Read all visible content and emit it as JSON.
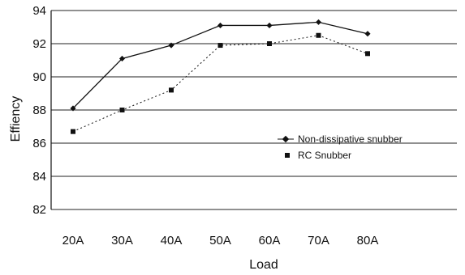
{
  "chart_data": {
    "type": "line",
    "xlabel": "Load",
    "ylabel": "Effiency",
    "categories": [
      "20A",
      "30A",
      "40A",
      "50A",
      "60A",
      "70A",
      "80A"
    ],
    "ylim": [
      82,
      94
    ],
    "yticks": [
      82,
      84,
      86,
      88,
      90,
      92,
      94
    ],
    "grid": true,
    "legend_position": "center-right",
    "series": [
      {
        "name": "Non-dissipative snubber",
        "values": [
          88.1,
          91.1,
          91.9,
          93.1,
          93.1,
          93.3,
          92.6
        ],
        "color": "#111111",
        "line": "solid",
        "marker": "diamond"
      },
      {
        "name": "RC Snubber",
        "values": [
          86.7,
          88.0,
          89.2,
          91.9,
          92.0,
          92.5,
          91.4
        ],
        "color": "#111111",
        "line": "dotted",
        "marker": "square"
      }
    ]
  }
}
